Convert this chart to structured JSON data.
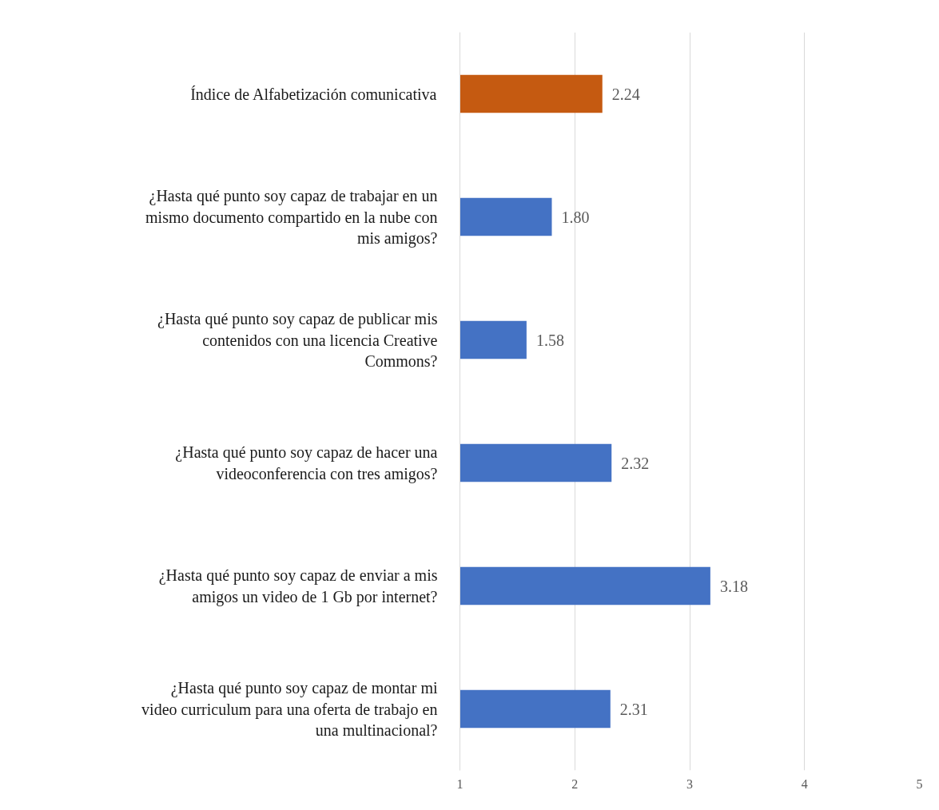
{
  "chart_data": {
    "type": "bar",
    "orientation": "horizontal",
    "categories": [
      "Índice de Alfabetización comunicativa",
      "¿Hasta qué punto soy capaz de trabajar en un\nmismo documento compartido en la nube con\nmis amigos?",
      "¿Hasta qué punto soy capaz de publicar mis\ncontenidos con una licencia Creative\nCommons?",
      "¿Hasta qué punto soy capaz de hacer una\nvideoconferencia con tres amigos?",
      "¿Hasta qué punto soy capaz de enviar a mis\namigos un video de 1 Gb por internet?",
      "¿Hasta qué punto soy capaz de montar mi\nvideo curriculum para una oferta de trabajo en\nuna multinacional?"
    ],
    "values": [
      2.24,
      1.8,
      1.58,
      2.32,
      3.18,
      2.31
    ],
    "value_labels": [
      "2.24",
      "1.80",
      "1.58",
      "2.32",
      "3.18",
      "2.31"
    ],
    "colors": [
      "#c55a11",
      "#4472c4",
      "#4472c4",
      "#4472c4",
      "#4472c4",
      "#4472c4"
    ],
    "xlim": [
      1,
      5
    ],
    "xticks": [
      1,
      2,
      3,
      4,
      5
    ],
    "grid": "x"
  }
}
